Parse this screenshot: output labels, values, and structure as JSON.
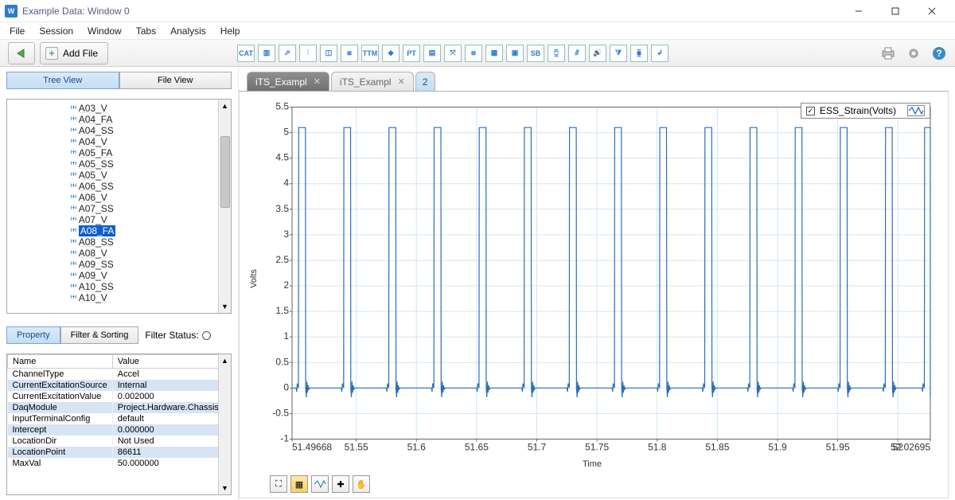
{
  "titlebar": {
    "app_abbrev": "W",
    "title": "Example Data: Window 0"
  },
  "menu": {
    "items": [
      "File",
      "Session",
      "Window",
      "Tabs",
      "Analysis",
      "Help"
    ]
  },
  "toolbar": {
    "addfile_label": "Add File",
    "icons": [
      "CAT",
      "▥",
      "⬀",
      "⫶",
      "◫",
      "⧈",
      "TTM",
      "◆",
      "PT",
      "▤",
      "⤧",
      "⧇",
      "▦",
      "▣",
      "SB",
      "⧮",
      "⫻",
      "🔊",
      "⧩",
      "⧯",
      "↲"
    ]
  },
  "views": {
    "tree_label": "Tree View",
    "file_label": "File View"
  },
  "tree": {
    "items": [
      "A03_V",
      "A04_FA",
      "A04_SS",
      "A04_V",
      "A05_FA",
      "A05_SS",
      "A05_V",
      "A06_SS",
      "A06_V",
      "A07_SS",
      "A07_V",
      "A08_FA",
      "A08_SS",
      "A08_V",
      "A09_SS",
      "A09_V",
      "A10_SS",
      "A10_V"
    ],
    "selected_index": 11
  },
  "prop_tabs": {
    "property_label": "Property",
    "filter_label": "Filter & Sorting",
    "status_label": "Filter Status:"
  },
  "properties": {
    "header_name": "Name",
    "header_value": "Value",
    "rows": [
      {
        "n": "ChannelType",
        "v": "Accel"
      },
      {
        "n": "CurrentExcitationSource",
        "v": "Internal"
      },
      {
        "n": "CurrentExcitationValue",
        "v": "0.002000"
      },
      {
        "n": "DaqModule",
        "v": "Project.Hardware.Chassis"
      },
      {
        "n": "InputTerminalConfig",
        "v": "default"
      },
      {
        "n": "Intercept",
        "v": "0.000000"
      },
      {
        "n": "LocationDir",
        "v": "Not Used"
      },
      {
        "n": "LocationPoint",
        "v": "86611"
      },
      {
        "n": "MaxVal",
        "v": "50.000000"
      }
    ]
  },
  "file_tabs": {
    "tab1": "iTS_Exampl",
    "tab2": "iTS_Exampl",
    "tab3": "2"
  },
  "chart": {
    "type": "line",
    "y_label": "Volts",
    "x_label": "Time",
    "legend_label": "ESS_Strain(Volts)",
    "line_color": "#2b6fb3",
    "grid_color": "#cfe6f5",
    "axis_color": "#666666",
    "text_color": "#333333",
    "background_color": "#ffffff",
    "xlim": [
      51.49668,
      52.02695
    ],
    "ylim": [
      -1,
      5.5
    ],
    "yticks": [
      -1,
      -0.5,
      0,
      0.5,
      1,
      1.5,
      2,
      2.5,
      3,
      3.5,
      4,
      4.5,
      5,
      5.5
    ],
    "xticks": [
      51.49668,
      51.55,
      51.6,
      51.65,
      51.7,
      51.75,
      51.8,
      51.85,
      51.9,
      51.95,
      52,
      52.02695
    ],
    "xtick_labels": [
      "51.49668",
      "51.55",
      "51.6",
      "51.65",
      "51.7",
      "51.75",
      "51.8",
      "51.85",
      "51.9",
      "51.95",
      "52",
      "52.02695"
    ],
    "pulse_amplitude": 5.1,
    "pulse_baseline": 0,
    "pulse_centers": [
      51.505,
      51.5425,
      51.58,
      51.6175,
      51.655,
      51.6925,
      51.73,
      51.7675,
      51.805,
      51.8425,
      51.88,
      51.9175,
      51.955,
      51.9925,
      52.025
    ],
    "pulse_width": 0.006,
    "ringing_amp": 0.18,
    "line_width": 1.2
  }
}
